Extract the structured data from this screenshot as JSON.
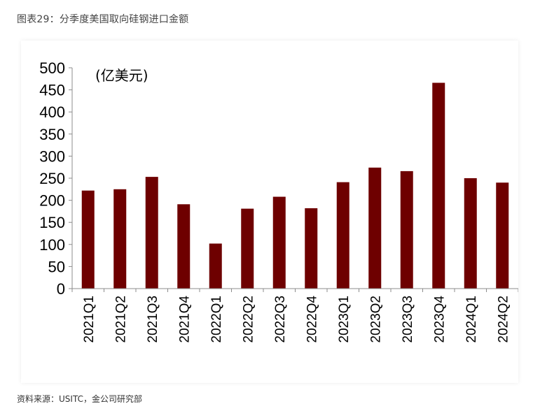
{
  "figure_title": "图表29：分季度美国取向硅钢进口金额",
  "source": "资料来源：USITC，金公司研究部",
  "colors": {
    "bar": "#6e0000",
    "axis": "#8c8c8c"
  },
  "chart_data": {
    "type": "bar",
    "title": "",
    "unit_label": "(亿美元)",
    "xlabel": "",
    "ylabel": "",
    "ylim": [
      0,
      500
    ],
    "yticks": [
      0,
      50,
      100,
      150,
      200,
      250,
      300,
      350,
      400,
      450,
      500
    ],
    "grid": false,
    "categories": [
      "2021Q1",
      "2021Q2",
      "2021Q3",
      "2021Q4",
      "2022Q1",
      "2022Q2",
      "2022Q3",
      "2022Q4",
      "2023Q1",
      "2023Q2",
      "2023Q3",
      "2023Q4",
      "2024Q1",
      "2024Q2"
    ],
    "values": [
      222,
      225,
      253,
      191,
      102,
      181,
      208,
      182,
      241,
      274,
      266,
      466,
      250,
      240
    ]
  }
}
